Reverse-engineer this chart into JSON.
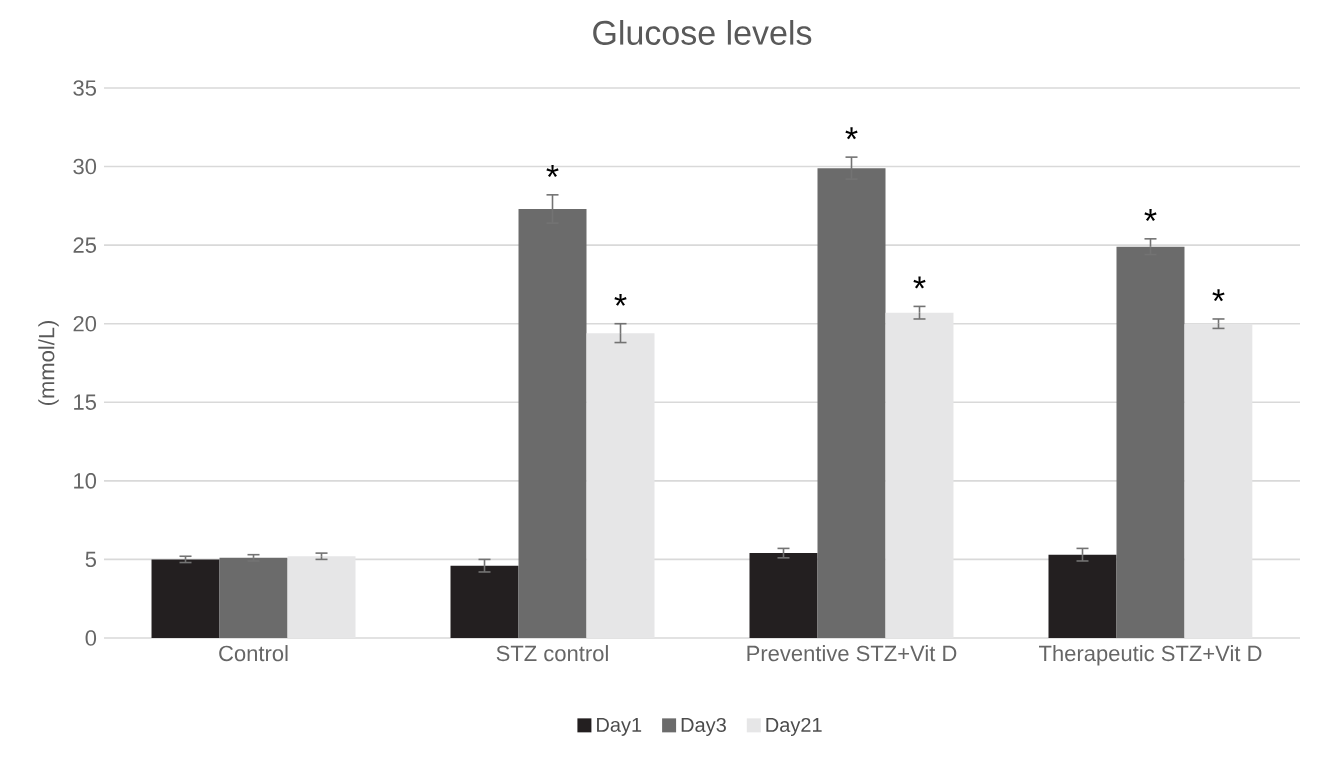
{
  "chart_data": {
    "type": "bar",
    "title": "Glucose levels",
    "ylabel": "(mmol/L)",
    "categories": [
      "Control",
      "STZ control",
      "Preventive STZ+Vit D",
      "Therapeutic STZ+Vit D"
    ],
    "series": [
      {
        "name": "Day1",
        "color": "#231f20",
        "values": [
          5.0,
          4.6,
          5.4,
          5.3
        ],
        "errors": [
          0.2,
          0.4,
          0.3,
          0.4
        ]
      },
      {
        "name": "Day3",
        "color": "#6b6b6b",
        "values": [
          5.1,
          27.3,
          29.9,
          24.9
        ],
        "errors": [
          0.2,
          0.9,
          0.7,
          0.5
        ]
      },
      {
        "name": "Day21",
        "color": "#e6e6e7",
        "values": [
          5.2,
          19.4,
          20.7,
          20.0
        ],
        "errors": [
          0.2,
          0.6,
          0.4,
          0.3
        ]
      }
    ],
    "annotations": [
      {
        "text": "*",
        "y": 27.3
      },
      {
        "text": "*",
        "y": 19.4
      },
      {
        "text": "*",
        "y": 29.9
      },
      {
        "text": "*",
        "y": 20.7
      },
      {
        "text": "*",
        "y": 24.9
      },
      {
        "text": "*",
        "y": 20.0
      }
    ],
    "ylim": [
      0,
      35
    ],
    "yticks": [
      0,
      5,
      10,
      15,
      20,
      25,
      30,
      35
    ],
    "grid": "y",
    "legend": "bottom"
  }
}
